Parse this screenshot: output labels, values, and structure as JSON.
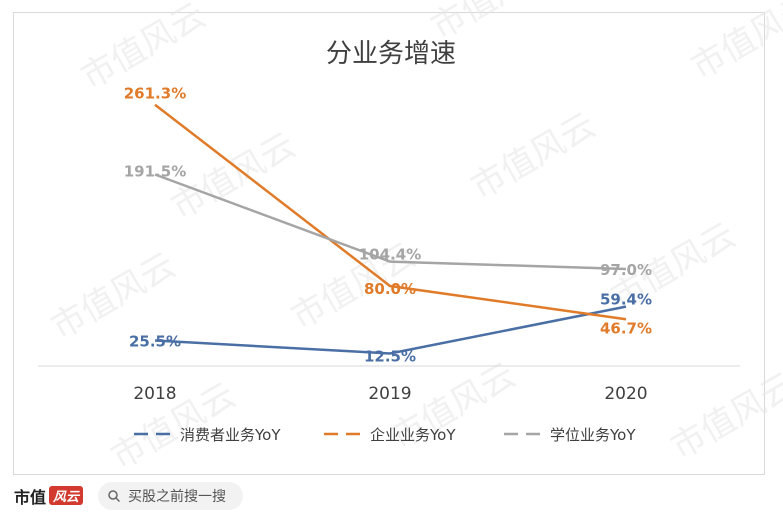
{
  "watermark": "市值风云",
  "chart_data": {
    "type": "line",
    "title": "分业务增速",
    "x": [
      "2018",
      "2019",
      "2020"
    ],
    "ylim": [
      0,
      300
    ],
    "grid": false,
    "legend_position": "bottom",
    "series": [
      {
        "name": "消费者业务YoY",
        "values": [
          25.5,
          12.5,
          59.4
        ],
        "labels": [
          "25.5%",
          "12.5%",
          "59.4%"
        ],
        "color": "#4a6fa5"
      },
      {
        "name": "企业业务YoY",
        "values": [
          261.3,
          80.0,
          46.7
        ],
        "labels": [
          "261.3%",
          "80.0%",
          "46.7%"
        ],
        "color": "#e07b2a"
      },
      {
        "name": "学位业务YoY",
        "values": [
          191.5,
          104.4,
          97.0
        ],
        "labels": [
          "191.5%",
          "104.4%",
          "97.0%"
        ],
        "color": "#a5a5a5"
      }
    ]
  },
  "footer": {
    "brand": "市值",
    "brand_mark": "风云",
    "search_text": "买股之前搜一搜",
    "search_icon": "search-icon"
  }
}
